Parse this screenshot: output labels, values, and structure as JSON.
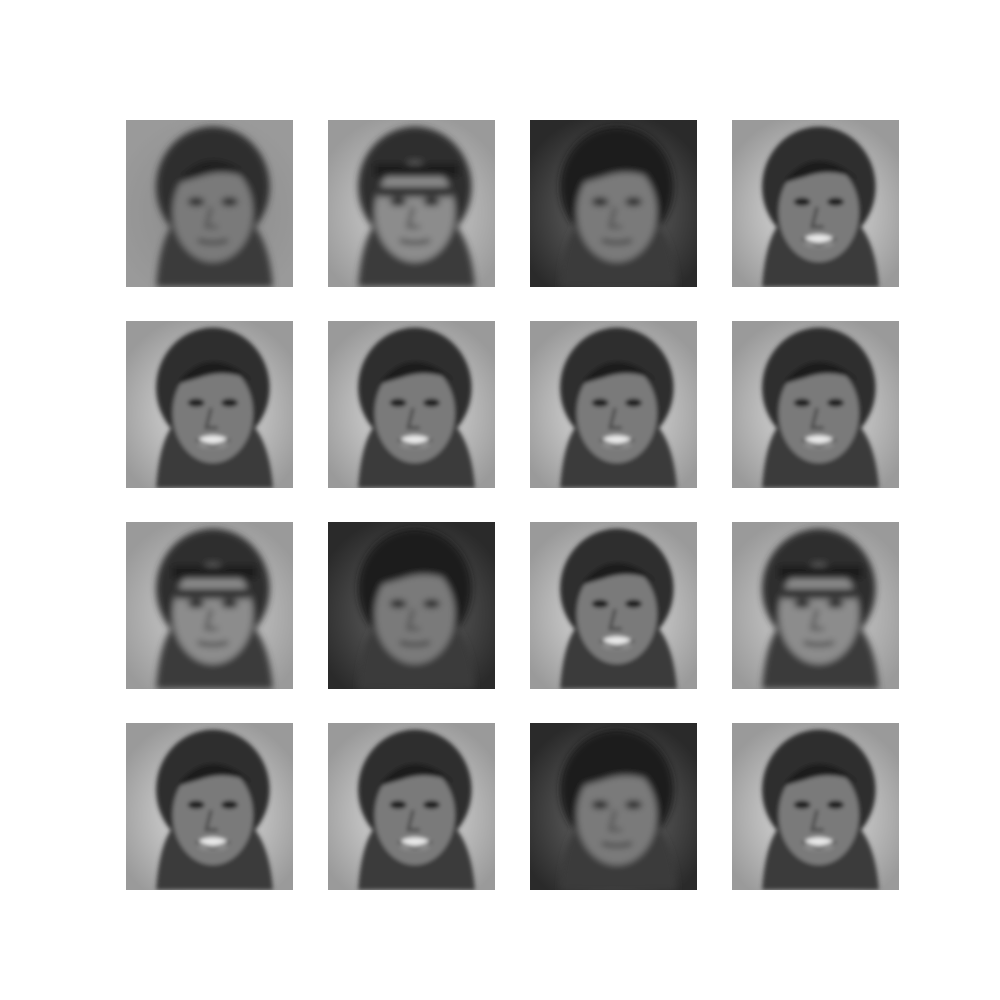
{
  "figure": {
    "background": "#ffffff",
    "grid": {
      "rows": 4,
      "cols": 4
    },
    "samples": [
      {
        "variant": "noisy-dark",
        "bg": "#8a8a8a"
      },
      {
        "variant": "headband-light",
        "bg": "#d8d8d8"
      },
      {
        "variant": "dark-blurred",
        "bg": "#6e6e6e"
      },
      {
        "variant": "smiling-light",
        "bg": "#e6e6e6"
      },
      {
        "variant": "smiling-light",
        "bg": "#e4e4e4"
      },
      {
        "variant": "smiling-light",
        "bg": "#e4e4e4"
      },
      {
        "variant": "smiling-light",
        "bg": "#e6e6e6"
      },
      {
        "variant": "smiling-light",
        "bg": "#e4e4e4"
      },
      {
        "variant": "headband-light",
        "bg": "#d6d6d6"
      },
      {
        "variant": "dark-blurred",
        "bg": "#6a6a6a"
      },
      {
        "variant": "smiling-light",
        "bg": "#e4e4e4"
      },
      {
        "variant": "headband-light",
        "bg": "#d8d8d8"
      },
      {
        "variant": "smiling-light",
        "bg": "#e6e6e6"
      },
      {
        "variant": "smiling-light",
        "bg": "#e4e4e4"
      },
      {
        "variant": "dark-blurred",
        "bg": "#707070"
      },
      {
        "variant": "smiling-light",
        "bg": "#e6e6e6"
      }
    ]
  }
}
